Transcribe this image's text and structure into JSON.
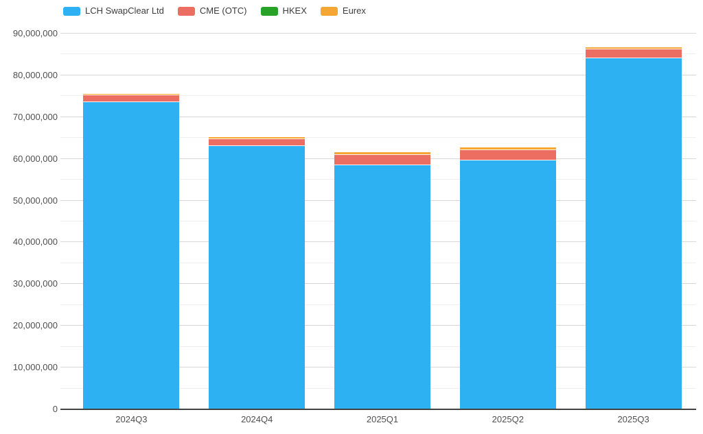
{
  "chart_data": {
    "type": "bar",
    "stacked": true,
    "title": "",
    "xlabel": "",
    "ylabel": "",
    "categories": [
      "2024Q3",
      "2024Q4",
      "2025Q1",
      "2025Q2",
      "2025Q3"
    ],
    "series": [
      {
        "name": "LCH SwapClear Ltd",
        "color": "#2db1f2",
        "values": [
          73500000,
          63000000,
          58400000,
          59600000,
          84100000
        ]
      },
      {
        "name": "CME (OTC)",
        "color": "#ec6e62",
        "values": [
          1500000,
          1600000,
          2400000,
          2300000,
          1900000
        ]
      },
      {
        "name": "HKEX",
        "color": "#28a228",
        "values": [
          0,
          0,
          0,
          0,
          0
        ]
      },
      {
        "name": "Eurex",
        "color": "#f6a632",
        "values": [
          300000,
          300000,
          450000,
          450000,
          400000
        ]
      }
    ],
    "totals_estimate": [
      75300000,
      64900000,
      61250000,
      62350000,
      86400000
    ],
    "ylim": [
      0,
      90000000
    ],
    "y_tick_interval": 10000000,
    "y_minor_tick_interval": 5000000,
    "y_tick_labels": [
      "0",
      "10,000,000",
      "20,000,000",
      "30,000,000",
      "40,000,000",
      "50,000,000",
      "60,000,000",
      "70,000,000",
      "80,000,000",
      "90,000,000"
    ],
    "grid": true,
    "legend_position": "top-left"
  }
}
